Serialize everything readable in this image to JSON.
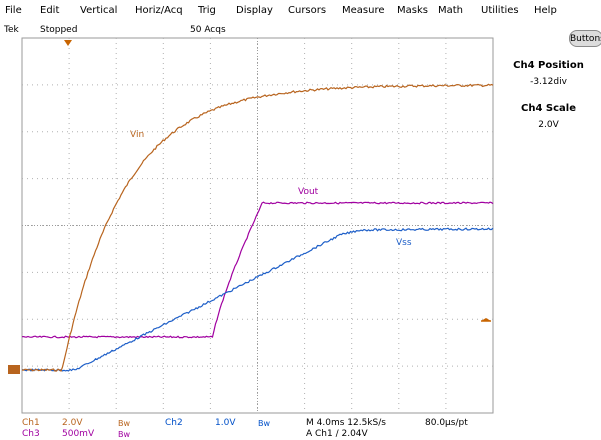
{
  "menu": [
    "File",
    "Edit",
    "Vertical",
    "Horiz/Acq",
    "Trig",
    "Display",
    "Cursors",
    "Measure",
    "Masks",
    "Math",
    "Utilities",
    "Help"
  ],
  "status": {
    "brand": "Tek",
    "state": "Stopped",
    "acqs": "50 Acqs"
  },
  "buttons_label": "Buttons",
  "side_panel": {
    "position_label": "Ch4 Position",
    "position_value": "-3.12div",
    "scale_label": "Ch4 Scale",
    "scale_value": "2.0V"
  },
  "trace_labels": {
    "vin": "Vin",
    "vout": "Vout",
    "vss": "Vss"
  },
  "footer": {
    "ch1": "Ch1",
    "ch1_scale": "2.0V",
    "bw": "Bw",
    "ch2": "Ch2",
    "ch2_scale": "1.0V",
    "ch3": "Ch3",
    "ch3_scale": "500mV",
    "timebase": "M 4.0ms 12.5kS/s",
    "sample_interval": "80.0µs/pt",
    "trigger": "A  Ch1  ∕  2.04V"
  },
  "colors": {
    "ch1": "#b8641e",
    "ch2": "#1e5fc8",
    "ch3": "#a000a0",
    "grid": "#9a9a9a",
    "marker": "#c86400"
  }
}
